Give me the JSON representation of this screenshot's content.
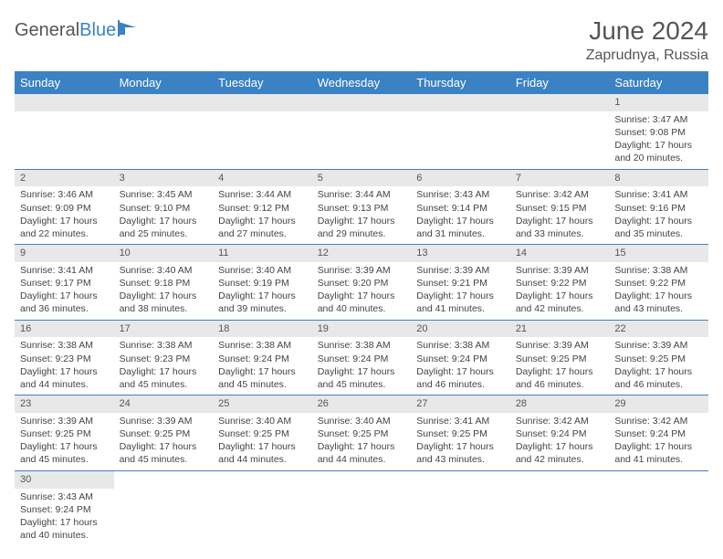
{
  "logo": {
    "text1": "General",
    "text2": "Blue"
  },
  "title": "June 2024",
  "location": "Zaprudnya, Russia",
  "colors": {
    "header_bg": "#3b82c4",
    "header_fg": "#ffffff",
    "daynum_bg": "#e8e8e8",
    "border": "#3b82c4",
    "text": "#444444"
  },
  "day_headers": [
    "Sunday",
    "Monday",
    "Tuesday",
    "Wednesday",
    "Thursday",
    "Friday",
    "Saturday"
  ],
  "weeks": [
    [
      null,
      null,
      null,
      null,
      null,
      null,
      {
        "n": "1",
        "sunrise": "3:47 AM",
        "sunset": "9:08 PM",
        "day_h": "17",
        "day_m": "20"
      }
    ],
    [
      {
        "n": "2",
        "sunrise": "3:46 AM",
        "sunset": "9:09 PM",
        "day_h": "17",
        "day_m": "22"
      },
      {
        "n": "3",
        "sunrise": "3:45 AM",
        "sunset": "9:10 PM",
        "day_h": "17",
        "day_m": "25"
      },
      {
        "n": "4",
        "sunrise": "3:44 AM",
        "sunset": "9:12 PM",
        "day_h": "17",
        "day_m": "27"
      },
      {
        "n": "5",
        "sunrise": "3:44 AM",
        "sunset": "9:13 PM",
        "day_h": "17",
        "day_m": "29"
      },
      {
        "n": "6",
        "sunrise": "3:43 AM",
        "sunset": "9:14 PM",
        "day_h": "17",
        "day_m": "31"
      },
      {
        "n": "7",
        "sunrise": "3:42 AM",
        "sunset": "9:15 PM",
        "day_h": "17",
        "day_m": "33"
      },
      {
        "n": "8",
        "sunrise": "3:41 AM",
        "sunset": "9:16 PM",
        "day_h": "17",
        "day_m": "35"
      }
    ],
    [
      {
        "n": "9",
        "sunrise": "3:41 AM",
        "sunset": "9:17 PM",
        "day_h": "17",
        "day_m": "36"
      },
      {
        "n": "10",
        "sunrise": "3:40 AM",
        "sunset": "9:18 PM",
        "day_h": "17",
        "day_m": "38"
      },
      {
        "n": "11",
        "sunrise": "3:40 AM",
        "sunset": "9:19 PM",
        "day_h": "17",
        "day_m": "39"
      },
      {
        "n": "12",
        "sunrise": "3:39 AM",
        "sunset": "9:20 PM",
        "day_h": "17",
        "day_m": "40"
      },
      {
        "n": "13",
        "sunrise": "3:39 AM",
        "sunset": "9:21 PM",
        "day_h": "17",
        "day_m": "41"
      },
      {
        "n": "14",
        "sunrise": "3:39 AM",
        "sunset": "9:22 PM",
        "day_h": "17",
        "day_m": "42"
      },
      {
        "n": "15",
        "sunrise": "3:38 AM",
        "sunset": "9:22 PM",
        "day_h": "17",
        "day_m": "43"
      }
    ],
    [
      {
        "n": "16",
        "sunrise": "3:38 AM",
        "sunset": "9:23 PM",
        "day_h": "17",
        "day_m": "44"
      },
      {
        "n": "17",
        "sunrise": "3:38 AM",
        "sunset": "9:23 PM",
        "day_h": "17",
        "day_m": "45"
      },
      {
        "n": "18",
        "sunrise": "3:38 AM",
        "sunset": "9:24 PM",
        "day_h": "17",
        "day_m": "45"
      },
      {
        "n": "19",
        "sunrise": "3:38 AM",
        "sunset": "9:24 PM",
        "day_h": "17",
        "day_m": "45"
      },
      {
        "n": "20",
        "sunrise": "3:38 AM",
        "sunset": "9:24 PM",
        "day_h": "17",
        "day_m": "46"
      },
      {
        "n": "21",
        "sunrise": "3:39 AM",
        "sunset": "9:25 PM",
        "day_h": "17",
        "day_m": "46"
      },
      {
        "n": "22",
        "sunrise": "3:39 AM",
        "sunset": "9:25 PM",
        "day_h": "17",
        "day_m": "46"
      }
    ],
    [
      {
        "n": "23",
        "sunrise": "3:39 AM",
        "sunset": "9:25 PM",
        "day_h": "17",
        "day_m": "45"
      },
      {
        "n": "24",
        "sunrise": "3:39 AM",
        "sunset": "9:25 PM",
        "day_h": "17",
        "day_m": "45"
      },
      {
        "n": "25",
        "sunrise": "3:40 AM",
        "sunset": "9:25 PM",
        "day_h": "17",
        "day_m": "44"
      },
      {
        "n": "26",
        "sunrise": "3:40 AM",
        "sunset": "9:25 PM",
        "day_h": "17",
        "day_m": "44"
      },
      {
        "n": "27",
        "sunrise": "3:41 AM",
        "sunset": "9:25 PM",
        "day_h": "17",
        "day_m": "43"
      },
      {
        "n": "28",
        "sunrise": "3:42 AM",
        "sunset": "9:24 PM",
        "day_h": "17",
        "day_m": "42"
      },
      {
        "n": "29",
        "sunrise": "3:42 AM",
        "sunset": "9:24 PM",
        "day_h": "17",
        "day_m": "41"
      }
    ],
    [
      {
        "n": "30",
        "sunrise": "3:43 AM",
        "sunset": "9:24 PM",
        "day_h": "17",
        "day_m": "40"
      },
      null,
      null,
      null,
      null,
      null,
      null
    ]
  ],
  "labels": {
    "sunrise": "Sunrise: ",
    "sunset": "Sunset: ",
    "daylight_prefix": "Daylight: ",
    "hours_word": " hours",
    "and_word": "and ",
    "minutes_word": " minutes."
  }
}
